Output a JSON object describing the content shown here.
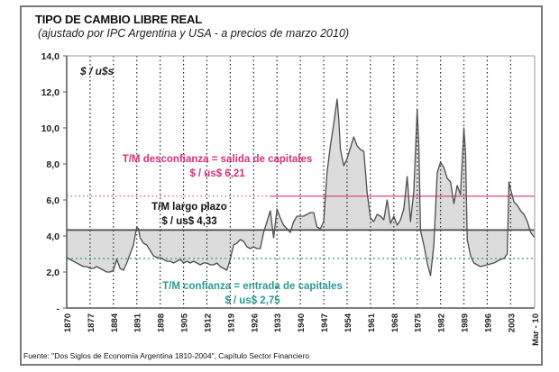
{
  "chart_data": {
    "type": "area",
    "title": "TIPO DE CAMBIO LIBRE REAL",
    "subtitle": "(ajustado por IPC Argentina y USA - a precios de marzo 2010)",
    "ylabel": "$ / u$s",
    "xlabel": "",
    "ylim": [
      0,
      14
    ],
    "xlim": [
      1870,
      2010.2
    ],
    "grid": "vertical dotted",
    "yticks": [
      {
        "value": 0,
        "label": "-"
      },
      {
        "value": 2,
        "label": "2,0"
      },
      {
        "value": 4,
        "label": "4,0"
      },
      {
        "value": 6,
        "label": "6,0"
      },
      {
        "value": 8,
        "label": "8,0"
      },
      {
        "value": 10,
        "label": "10,0"
      },
      {
        "value": 12,
        "label": "12,0"
      },
      {
        "value": 14,
        "label": "14,0"
      }
    ],
    "xticks": [
      {
        "value": 1870,
        "label": "1870"
      },
      {
        "value": 1877,
        "label": "1877"
      },
      {
        "value": 1884,
        "label": "1884"
      },
      {
        "value": 1891,
        "label": "1891"
      },
      {
        "value": 1898,
        "label": "1898"
      },
      {
        "value": 1905,
        "label": "1905"
      },
      {
        "value": 1912,
        "label": "1912"
      },
      {
        "value": 1919,
        "label": "1919"
      },
      {
        "value": 1926,
        "label": "1926"
      },
      {
        "value": 1933,
        "label": "1933"
      },
      {
        "value": 1940,
        "label": "1940"
      },
      {
        "value": 1947,
        "label": "1947"
      },
      {
        "value": 1954,
        "label": "1954"
      },
      {
        "value": 1961,
        "label": "1961"
      },
      {
        "value": 1968,
        "label": "1968"
      },
      {
        "value": 1975,
        "label": "1975"
      },
      {
        "value": 1982,
        "label": "1982"
      },
      {
        "value": 1989,
        "label": "1989"
      },
      {
        "value": 1996,
        "label": "1996"
      },
      {
        "value": 2003,
        "label": "2003"
      },
      {
        "value": 2010.2,
        "label": "Mar - 10"
      }
    ],
    "gridlines_x": [
      1877,
      1884,
      1891,
      1898,
      1905,
      1912,
      1919,
      1926,
      1933,
      1940,
      1947,
      1954,
      1961,
      1968,
      1975,
      1982,
      1989,
      1996,
      2003
    ],
    "reference_lines": [
      {
        "name": "T/M desconfianza",
        "value": 6.21,
        "color": "#d6317a",
        "label1": "T/M desconfianza = salida de capitales",
        "label2": "$ / us$ 6,21"
      },
      {
        "name": "T/M largo plazo",
        "value": 4.33,
        "color": "#4a4a4a",
        "label1": "T/M largo plazo",
        "label2": "$ / us$ 4,33"
      },
      {
        "name": "T/M confianza",
        "value": 2.75,
        "color": "#2e9a92",
        "label1": "T/M confianza = entrada de capitales",
        "label2": "$ / us$ 2,75"
      }
    ],
    "series": [
      {
        "name": "Tipo de cambio libre real",
        "color": "#4d4d4d",
        "fill": "#dcdcdc",
        "x": [
          1870,
          1871,
          1872,
          1873,
          1874,
          1875,
          1876,
          1877,
          1878,
          1879,
          1880,
          1881,
          1882,
          1883,
          1884,
          1885,
          1886,
          1887,
          1888,
          1889,
          1890,
          1891,
          1891.5,
          1892,
          1893,
          1894,
          1895,
          1896,
          1897,
          1898,
          1899,
          1900,
          1901,
          1902,
          1903,
          1904,
          1905,
          1906,
          1907,
          1908,
          1909,
          1910,
          1911,
          1912,
          1913,
          1914,
          1915,
          1916,
          1917,
          1918,
          1919,
          1920,
          1921,
          1922,
          1923,
          1924,
          1925,
          1926,
          1927,
          1928,
          1929,
          1930,
          1931,
          1932,
          1933,
          1934,
          1935,
          1936,
          1937,
          1938,
          1939,
          1940,
          1941,
          1942,
          1943,
          1944,
          1945,
          1946,
          1947,
          1948,
          1949,
          1950,
          1951,
          1951.5,
          1952,
          1953,
          1954,
          1955,
          1956,
          1957,
          1958,
          1959,
          1960,
          1961,
          1962,
          1963,
          1964,
          1965,
          1966,
          1967,
          1968,
          1969,
          1970,
          1971,
          1972,
          1973,
          1974,
          1975,
          1975.5,
          1976,
          1977,
          1978,
          1979,
          1980,
          1981,
          1982,
          1983,
          1984,
          1985,
          1986,
          1987,
          1988,
          1989,
          1989.5,
          1990,
          1991,
          1992,
          1993,
          1994,
          1995,
          1996,
          1997,
          1998,
          1999,
          2000,
          2001,
          2002,
          2002.5,
          2003,
          2004,
          2005,
          2006,
          2007,
          2008,
          2009,
          2010.2
        ],
        "values": [
          2.8,
          2.7,
          2.6,
          2.5,
          2.4,
          2.3,
          2.3,
          2.2,
          2.2,
          2.3,
          2.2,
          2.1,
          2.0,
          2.0,
          2.1,
          2.7,
          2.2,
          2.1,
          2.5,
          3.0,
          3.5,
          4.5,
          4.4,
          3.9,
          3.6,
          3.5,
          3.2,
          2.9,
          2.8,
          2.8,
          2.7,
          2.6,
          2.6,
          2.5,
          2.6,
          2.7,
          2.5,
          2.6,
          2.5,
          2.6,
          2.5,
          2.4,
          2.5,
          2.5,
          2.4,
          2.4,
          2.5,
          2.3,
          2.2,
          2.1,
          2.7,
          3.5,
          3.6,
          3.8,
          3.7,
          3.4,
          3.3,
          3.4,
          3.3,
          3.3,
          4.2,
          4.8,
          5.4,
          3.9,
          5.5,
          5.0,
          4.6,
          4.4,
          4.2,
          4.8,
          5.1,
          5.1,
          5.1,
          5.2,
          5.3,
          5.3,
          4.5,
          4.4,
          4.8,
          7.5,
          9.0,
          10.2,
          11.6,
          10.5,
          8.8,
          7.9,
          8.3,
          8.9,
          9.5,
          9.0,
          8.8,
          8.7,
          6.4,
          5.0,
          4.8,
          5.2,
          5.1,
          4.9,
          6.0,
          4.7,
          5.1,
          4.6,
          4.9,
          5.5,
          7.3,
          4.8,
          6.5,
          11.0,
          9.0,
          4.3,
          3.5,
          2.5,
          1.8,
          3.5,
          7.5,
          8.1,
          7.8,
          7.2,
          7.0,
          5.8,
          6.8,
          6.3,
          10.0,
          8.5,
          3.8,
          2.9,
          2.5,
          2.4,
          2.3,
          2.35,
          2.4,
          2.45,
          2.5,
          2.6,
          2.7,
          2.75,
          3.0,
          7.0,
          6.6,
          5.9,
          5.7,
          5.4,
          5.2,
          4.8,
          4.2,
          3.9
        ]
      }
    ],
    "annotations": [
      {
        "text": "$ / u$s",
        "position": "top-left"
      }
    ],
    "legend": "none"
  },
  "source_note": "Fuente: \"Dos Siglos de Economía Argentina 1810-2004\", Capítulo Sector Financiero"
}
